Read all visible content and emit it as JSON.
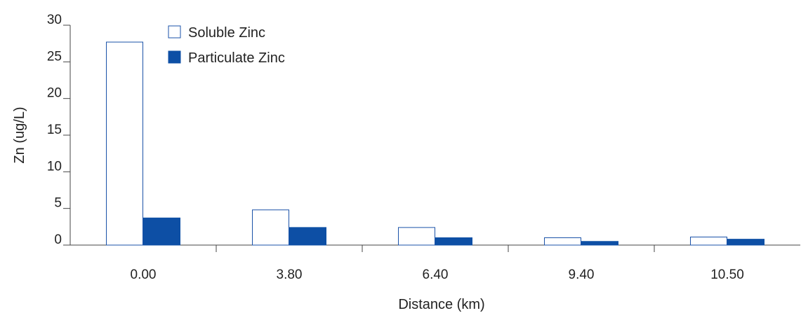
{
  "chart_data": {
    "type": "bar",
    "xlabel": "Distance (km)",
    "ylabel": "Zn (ug/L)",
    "ylim": [
      0,
      30
    ],
    "yticks": [
      0,
      5,
      10,
      15,
      20,
      25,
      30
    ],
    "ytick_labels": [
      "0",
      "5",
      "10",
      "15",
      "20",
      "25",
      "30"
    ],
    "categories": [
      "0.00",
      "3.80",
      "6.40",
      "9.40",
      "10.50"
    ],
    "series": [
      {
        "name": "Soluble Zinc",
        "values": [
          27.7,
          4.8,
          2.4,
          1.0,
          1.1
        ],
        "fill": "#ffffff",
        "stroke": "#1a52a8"
      },
      {
        "name": "Particulate Zinc",
        "values": [
          3.7,
          2.4,
          1.0,
          0.5,
          0.8
        ],
        "fill": "#0d4fa5",
        "stroke": "#0d4fa5"
      }
    ],
    "grid": false,
    "legend_position": "top-left"
  }
}
